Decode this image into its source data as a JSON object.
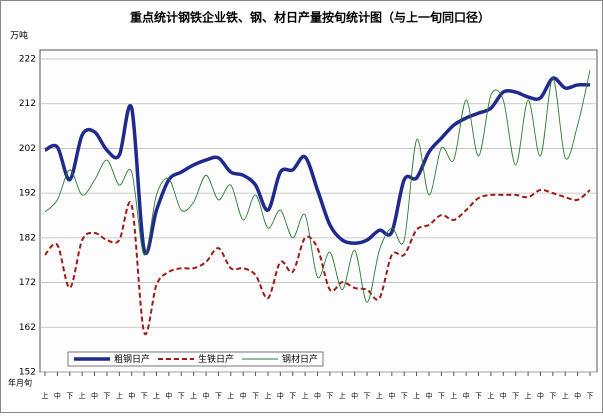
{
  "chart_data": {
    "type": "line",
    "title": "重点统计钢铁企业铁、钢、材日产量按旬统计图（与上一旬同口径）",
    "y_label": "万吨",
    "x_label": "年月旬",
    "categories": [
      "上",
      "中",
      "下",
      "上",
      "中",
      "下",
      "上",
      "中",
      "下",
      "上",
      "中",
      "下",
      "上",
      "中",
      "下",
      "上",
      "中",
      "下",
      "上",
      "中",
      "下",
      "上",
      "中",
      "下",
      "上",
      "中",
      "下",
      "上",
      "中",
      "下",
      "上",
      "中",
      "下",
      "上",
      "中",
      "下",
      "上",
      "中",
      "下",
      "上",
      "中",
      "下",
      "上",
      "中",
      "下"
    ],
    "ylim": [
      152,
      222
    ],
    "yticks": [
      152,
      162,
      172,
      182,
      192,
      202,
      212,
      222
    ],
    "grid": true,
    "legend": "bottom-left",
    "series": [
      {
        "name": "粗钢日产",
        "color": "#1f2a8c",
        "style": "solid-thick",
        "values": [
          201.6,
          202.3,
          195,
          205,
          205.7,
          201.6,
          200.5,
          211,
          179.3,
          188.2,
          195,
          196.7,
          198.3,
          199.4,
          199.9,
          196.7,
          196,
          193.8,
          188.2,
          196.7,
          197.2,
          200.1,
          192.7,
          184.9,
          181.5,
          180.8,
          181.5,
          183.7,
          183.3,
          195,
          195.4,
          201.2,
          204.3,
          207.2,
          208.8,
          209.9,
          211,
          214.6,
          214.6,
          213.5,
          213.3,
          217.7,
          215.5,
          216.2,
          216.2
        ]
      },
      {
        "name": "生铁日产",
        "color": "#a01818",
        "style": "dashed",
        "values": [
          178.2,
          180.4,
          170.8,
          181.5,
          183.1,
          181.5,
          181.5,
          189.3,
          160.9,
          171.5,
          174.4,
          175.2,
          175.2,
          176.6,
          179.7,
          175.2,
          175.2,
          173.7,
          168.5,
          176.6,
          174.4,
          182,
          179.7,
          170.4,
          172.1,
          170.8,
          170.4,
          168.5,
          178.2,
          178.2,
          183.8,
          184.9,
          187.1,
          186,
          188.2,
          190.9,
          191.6,
          191.6,
          191.6,
          191.1,
          192.7,
          192,
          191.1,
          190.5,
          192.7
        ]
      },
      {
        "name": "钢材日产",
        "color": "#2e7d32",
        "style": "thin",
        "values": [
          187.8,
          190.5,
          197.2,
          191.6,
          194.9,
          199.4,
          193.8,
          196.7,
          178.2,
          191.6,
          195.2,
          188.2,
          190,
          196,
          190.5,
          193.8,
          186,
          191.6,
          184.2,
          188.2,
          182,
          187.1,
          173.2,
          178.8,
          170.4,
          179.2,
          167.6,
          179.3,
          184.2,
          181.5,
          203.9,
          191.6,
          202.1,
          199.4,
          212.8,
          200.3,
          213.9,
          212.8,
          198.3,
          212.8,
          200.3,
          217.7,
          199.9,
          207.2,
          219.5
        ]
      }
    ]
  }
}
